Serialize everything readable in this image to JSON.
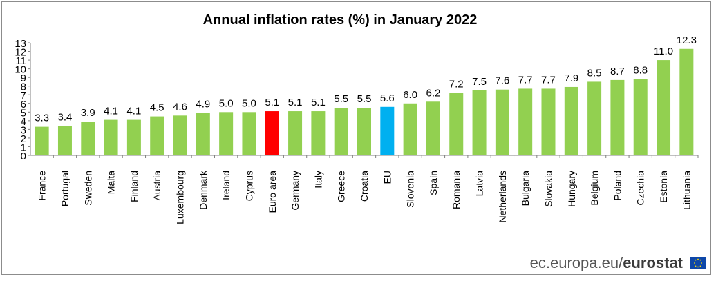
{
  "colors": {
    "bar": "#92d050",
    "euro_area": "#ff0000",
    "eu": "#00b0f0",
    "axis": "#808080",
    "text": "#000000"
  },
  "footer": {
    "site": "ec.europa.eu/",
    "brand": "eurostat",
    "flag_icon": "eu-flag-icon"
  },
  "chart_data": {
    "type": "bar",
    "title": "Annual inflation rates (%)  in January 2022",
    "xlabel": "",
    "ylabel": "",
    "ylim": [
      0,
      13
    ],
    "yticks": [
      0,
      1,
      2,
      3,
      4,
      5,
      6,
      7,
      8,
      9,
      10,
      11,
      12,
      13
    ],
    "grid": false,
    "categories": [
      "France",
      "Portugal",
      "Sweden",
      "Malta",
      "Finland",
      "Austria",
      "Luxembourg",
      "Denmark",
      "Ireland",
      "Cyprus",
      "Euro area",
      "Germany",
      "Italy",
      "Greece",
      "Croatia",
      "EU",
      "Slovenia",
      "Spain",
      "Romania",
      "Latvia",
      "Netherlands",
      "Bulgaria",
      "Slovakia",
      "Hungary",
      "Belgium",
      "Poland",
      "Czechia",
      "Estonia",
      "Lithuania"
    ],
    "values": [
      3.3,
      3.4,
      3.9,
      4.1,
      4.1,
      4.5,
      4.6,
      4.9,
      5.0,
      5.0,
      5.1,
      5.1,
      5.1,
      5.5,
      5.5,
      5.6,
      6.0,
      6.2,
      7.2,
      7.5,
      7.6,
      7.7,
      7.7,
      7.9,
      8.5,
      8.7,
      8.8,
      11.0,
      12.3
    ],
    "labels": [
      "3.3",
      "3.4",
      "3.9",
      "4.1",
      "4.1",
      "4.5",
      "4.6",
      "4.9",
      "5.0",
      "5.0",
      "5.1",
      "5.1",
      "5.1",
      "5.5",
      "5.5",
      "5.6",
      "6.0",
      "6.2",
      "7.2",
      "7.5",
      "7.6",
      "7.7",
      "7.7",
      "7.9",
      "8.5",
      "8.7",
      "8.8",
      "11.0",
      "12.3"
    ],
    "highlight": {
      "Euro area": "euro_area",
      "EU": "eu"
    }
  }
}
